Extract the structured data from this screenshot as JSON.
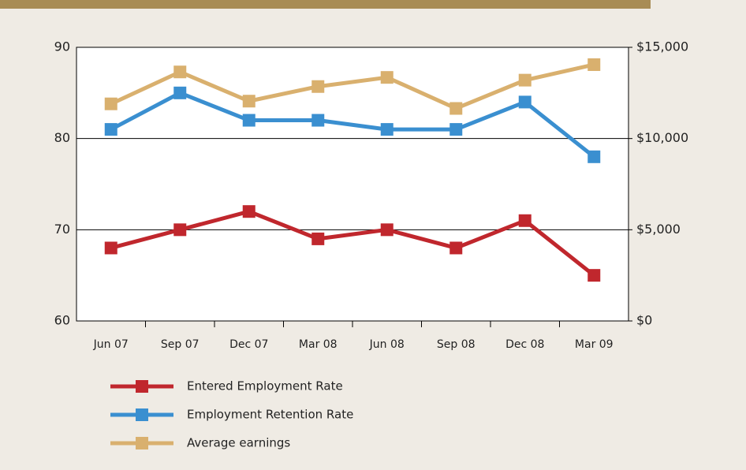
{
  "chart_data": {
    "type": "line",
    "categories": [
      "Jun 07",
      "Sep 07",
      "Dec 07",
      "Mar 08",
      "Jun 08",
      "Sep 08",
      "Dec 08",
      "Mar 09"
    ],
    "series": [
      {
        "name": "Entered Employment Rate",
        "color": "#c0272d",
        "values": [
          68,
          70,
          72,
          69,
          70,
          68,
          71,
          65
        ]
      },
      {
        "name": "Employment Retention Rate",
        "color": "#3a8fd0",
        "values": [
          81,
          85,
          82,
          82,
          81,
          81,
          84,
          78
        ]
      },
      {
        "name": "Average earnings",
        "color": "#d9b06e",
        "axis": "y2",
        "values": [
          11900,
          13650,
          12050,
          12850,
          13350,
          11650,
          13200,
          14050
        ]
      }
    ],
    "ylim": [
      60,
      90
    ],
    "yticks": [
      60,
      70,
      80,
      90
    ],
    "y2lim": [
      0,
      15000
    ],
    "y2ticks": [
      {
        "value": 0,
        "label": "$0"
      },
      {
        "value": 5000,
        "label": "$5,000"
      },
      {
        "value": 10000,
        "label": "$10,000"
      },
      {
        "value": 15000,
        "label": "$15,000"
      }
    ],
    "grid": true
  }
}
